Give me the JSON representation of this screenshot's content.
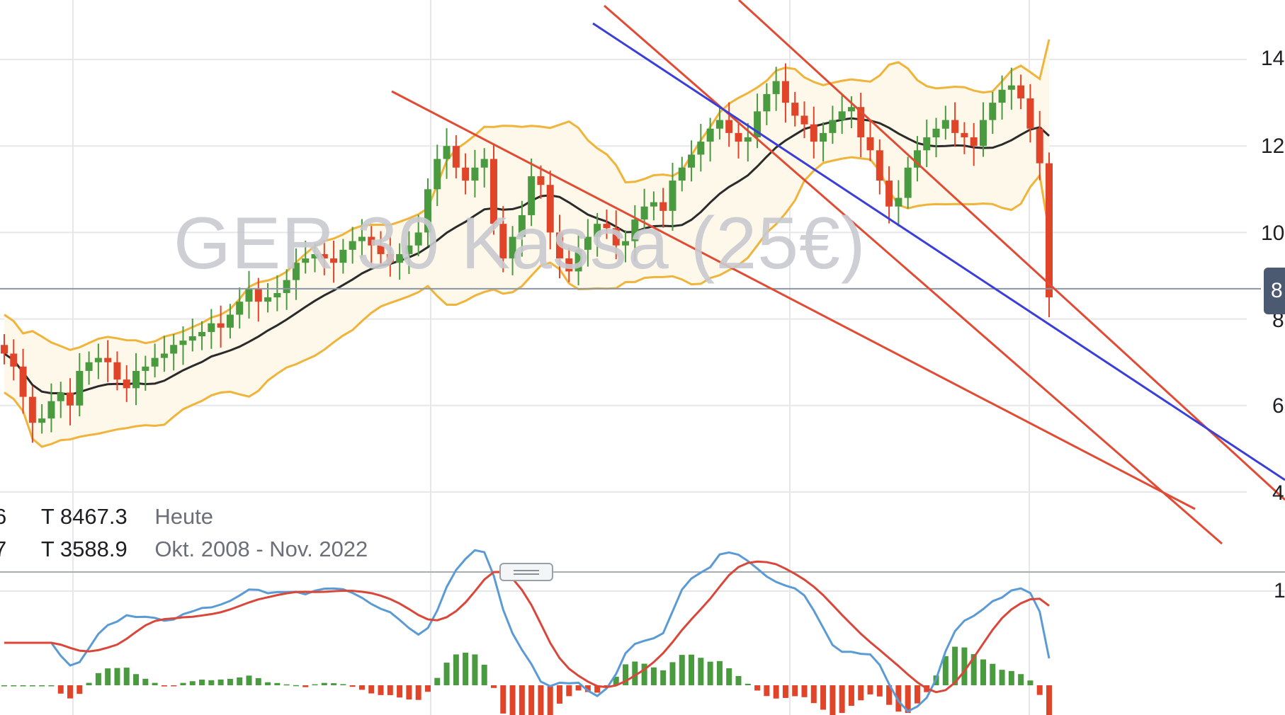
{
  "chart_data": {
    "type": "candlestick",
    "title": "GER 30 Kassa (25€)",
    "price_axis": {
      "ticks": [
        {
          "value": 14000,
          "label": "14"
        },
        {
          "value": 12000,
          "label": "12"
        },
        {
          "value": 10000,
          "label": "10"
        },
        {
          "value": 8000,
          "label": "8"
        },
        {
          "value": 6000,
          "label": "6"
        },
        {
          "value": 4000,
          "label": "4"
        }
      ],
      "current_price_label": "8",
      "ylim": [
        2500,
        15500
      ]
    },
    "indicator_axis": {
      "ticks": [
        {
          "label": "1"
        }
      ]
    },
    "period": "Okt. 2008 - Nov. 2022",
    "legend": {
      "rows": [
        {
          "prefix": "6",
          "value": "T 8467.3",
          "label": "Heute"
        },
        {
          "prefix": "7",
          "value": "T 3588.9",
          "label": "Okt. 2008 - Nov. 2022"
        }
      ]
    },
    "current_level": 8700,
    "candles_approx_close": [
      7200,
      6900,
      6200,
      5600,
      5700,
      6100,
      6300,
      6000,
      6800,
      7000,
      7100,
      7000,
      6600,
      6400,
      6800,
      6900,
      7100,
      7200,
      7400,
      7500,
      7600,
      7700,
      7900,
      7800,
      8100,
      8400,
      8700,
      8400,
      8500,
      8600,
      8900,
      9300,
      9400,
      9500,
      9400,
      9300,
      9600,
      9800,
      9900,
      9700,
      9500,
      9300,
      9500,
      9700,
      10000,
      11000,
      11700,
      12000,
      11500,
      11200,
      11500,
      11700,
      10200,
      9400,
      9900,
      10400,
      11300,
      11100,
      10000,
      9400,
      9100,
      9600,
      9900,
      10200,
      10100,
      9700,
      9800,
      10300,
      10600,
      10700,
      10500,
      11200,
      11500,
      11800,
      12100,
      12400,
      12600,
      12300,
      12100,
      12200,
      12800,
      13200,
      13500,
      13000,
      12700,
      12500,
      12100,
      12300,
      12600,
      12800,
      12900,
      12200,
      11900,
      11200,
      10600,
      10800,
      11500,
      11900,
      12200,
      12400,
      12600,
      12300,
      12200,
      12000,
      12600,
      13000,
      13300,
      13400,
      13100,
      12400,
      11600,
      8500
    ]
  },
  "colors": {
    "candle_up": "#4a9a3f",
    "candle_down": "#e0452a",
    "bollinger_band": "#f0b43a",
    "band_fill": "#fdf8ea",
    "moving_average": "#2b2b2b",
    "trendline_red": "#e14b34",
    "trendline_blue": "#3a3fd8",
    "macd_line": "#5b9bd5",
    "signal_line": "#d9473a",
    "gridline": "#e6e7ea",
    "current_level_line": "#8a96a6"
  }
}
